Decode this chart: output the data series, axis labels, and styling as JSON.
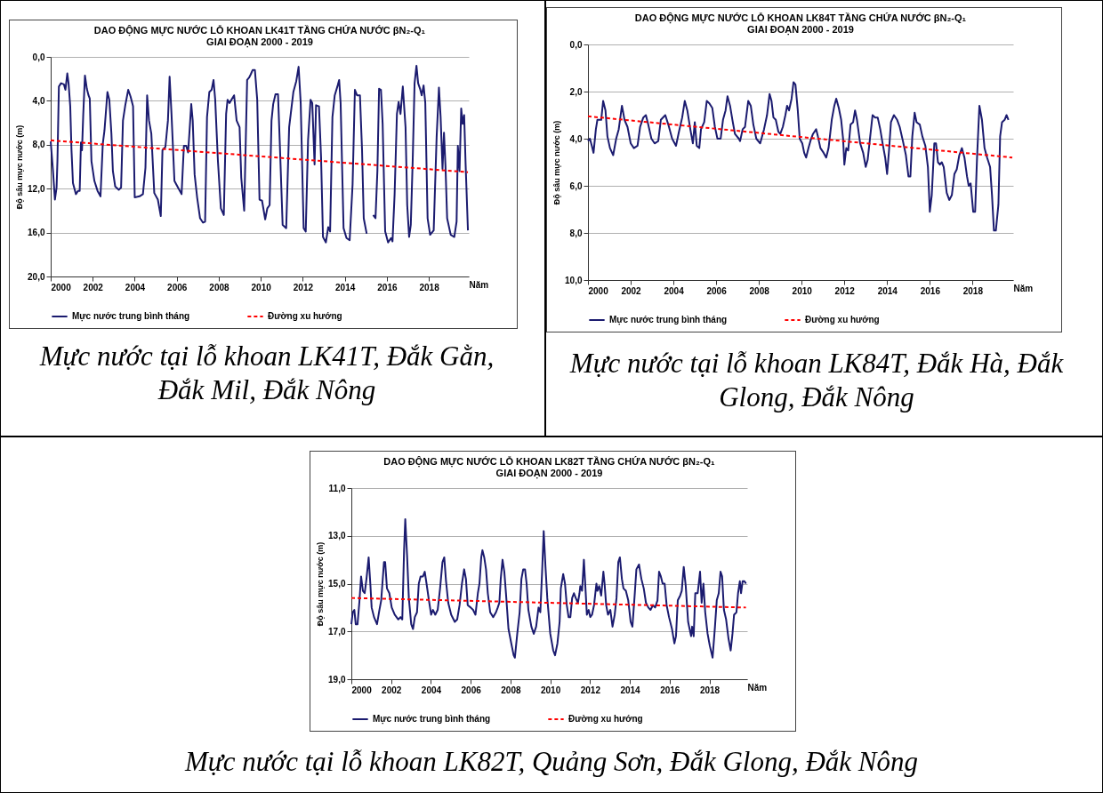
{
  "chart_data": [
    {
      "type": "line",
      "title": "DAO ĐỘNG MỰC NƯỚC LỖ KHOAN LK41T TẦNG CHỨA NƯỚC βN₂-Q₁",
      "subtitle": "GIAI ĐOẠN 2000 - 2019",
      "xlabel": "Năm",
      "ylabel": "Độ sâu mực nước (m)",
      "annotations": [
        "Mực nước tại lỗ khoan LK41T, Đắk Gằn, Đắk Mil, Đắk Nông"
      ],
      "xlim": [
        2000,
        2019.9
      ],
      "xticks": [
        2000,
        2002,
        2004,
        2006,
        2008,
        2010,
        2012,
        2014,
        2016,
        2018
      ],
      "ylim": [
        20,
        0
      ],
      "yticks": [
        {
          "value": 0,
          "label": "0,0"
        },
        {
          "value": 4,
          "label": "4,0"
        },
        {
          "value": 8,
          "label": "8,0"
        },
        {
          "value": 12,
          "label": "12,0"
        },
        {
          "value": 16,
          "label": "16,0"
        },
        {
          "value": 20,
          "label": "20,0"
        }
      ],
      "grid": "y",
      "legend": "bottom",
      "marker": "none",
      "line_style": "solid",
      "series": [
        {
          "name": "Mực nước trung bình tháng",
          "color": "#1b1b6f",
          "x": [
            2000,
            2000.11,
            2000.2,
            2000.28,
            2000.32,
            2000.39,
            2000.49,
            2000.63,
            2000.7,
            2000.79,
            2000.85,
            2000.93,
            2000.99,
            2001.06,
            2001.2,
            2001.3,
            2001.38,
            2001.44,
            2001.49,
            2001.55,
            2001.63,
            2001.72,
            2001.8,
            2001.86,
            2001.94,
            2002.08,
            2002.23,
            2002.37,
            2002.48,
            2002.56,
            2002.7,
            2002.79,
            2002.89,
            2002.96,
            2003.07,
            2003.24,
            2003.35,
            2003.44,
            2003.55,
            2003.69,
            2003.8,
            2003.92,
            2004.0,
            2004.23,
            2004.39,
            2004.51,
            2004.59,
            2004.68,
            2004.79,
            2004.93,
            2005.1,
            2005.24,
            2005.32,
            2005.46,
            2005.58,
            2005.66,
            2005.75,
            2005.89,
            2006.06,
            2006.23,
            2006.34,
            2006.45,
            2006.54,
            2006.59,
            2006.69,
            2006.76,
            2006.85,
            2006.97,
            2007.11,
            2007.25,
            2007.35,
            2007.44,
            2007.55,
            2007.66,
            2007.75,
            2007.83,
            2007.96,
            2008.1,
            2008.24,
            2008.35,
            2008.42,
            2008.51,
            2008.73,
            2008.85,
            2008.99,
            2009.07,
            2009.21,
            2009.35,
            2009.44,
            2009.52,
            2009.61,
            2009.72,
            2009.83,
            2009.94,
            2010.06,
            2010.21,
            2010.31,
            2010.42,
            2010.51,
            2010.59,
            2010.7,
            2010.82,
            2010.9,
            2011.04,
            2011.21,
            2011.35,
            2011.55,
            2011.69,
            2011.8,
            2011.9,
            2012.04,
            2012.14,
            2012.25,
            2012.37,
            2012.45,
            2012.56,
            2012.63,
            2012.77,
            2012.87,
            2012.96,
            2013.1,
            2013.21,
            2013.3,
            2013.41,
            2013.52,
            2013.66,
            2013.73,
            2013.8,
            2013.94,
            2014.08,
            2014.23,
            2014.37,
            2014.48,
            2014.58,
            2014.72,
            2014.82,
            2014.9,
            2015.04,
            2015.2,
            2015.35,
            2015.46,
            2015.55,
            2015.63,
            2015.72,
            2015.8,
            2015.92,
            2016.06,
            2016.2,
            2016.27,
            2016.37,
            2016.48,
            2016.56,
            2016.65,
            2016.76,
            2016.89,
            2016.97,
            2017.06,
            2017.14,
            2017.23,
            2017.32,
            2017.41,
            2017.49,
            2017.58,
            2017.66,
            2017.75,
            2017.83,
            2017.94,
            2018.06,
            2018.23,
            2018.37,
            2018.48,
            2018.56,
            2018.65,
            2018.72,
            2018.79,
            2018.87,
            2019.04,
            2019.21,
            2019.32,
            2019.38,
            2019.46,
            2019.54,
            2019.61,
            2019.68,
            2019.75,
            2019.86
          ],
          "values": [
            7.7,
            10.4,
            13.0,
            11.9,
            9.5,
            2.7,
            2.4,
            2.5,
            3.0,
            1.5,
            2.4,
            4.5,
            8.5,
            11.5,
            12.5,
            12.2,
            12.2,
            7.8,
            8.5,
            5.2,
            1.7,
            2.9,
            3.5,
            3.8,
            9.5,
            11.3,
            12.2,
            12.7,
            7.9,
            6.7,
            3.2,
            3.9,
            7.0,
            10.4,
            11.8,
            12.1,
            11.9,
            5.8,
            4.4,
            3.0,
            3.6,
            4.5,
            12.8,
            12.7,
            12.5,
            10.1,
            3.5,
            5.8,
            7.0,
            12.4,
            13.0,
            14.5,
            8.5,
            8.2,
            5.8,
            1.8,
            5.2,
            11.3,
            11.9,
            12.5,
            8.1,
            8.1,
            8.7,
            7.3,
            4.3,
            5.8,
            10.7,
            12.8,
            14.7,
            15.1,
            15.0,
            5.5,
            3.2,
            3.0,
            2.1,
            3.9,
            9.5,
            13.8,
            14.4,
            5.2,
            3.9,
            4.2,
            3.5,
            5.8,
            6.4,
            11.0,
            14.0,
            2.1,
            1.9,
            1.6,
            1.2,
            1.2,
            3.9,
            13.0,
            13.1,
            14.8,
            13.8,
            13.5,
            5.8,
            4.3,
            3.4,
            3.4,
            7.6,
            15.3,
            15.6,
            6.4,
            3.2,
            2.2,
            0.9,
            4.2,
            15.6,
            15.9,
            7.6,
            3.9,
            4.2,
            9.8,
            4.4,
            4.5,
            9.2,
            16.4,
            16.9,
            15.5,
            15.9,
            5.5,
            3.5,
            2.6,
            2.1,
            4.2,
            15.6,
            16.5,
            16.7,
            11.6,
            3.0,
            3.5,
            3.5,
            8.5,
            14.7,
            16.1,
            null,
            14.4,
            14.7,
            10.4,
            2.9,
            3.0,
            6.1,
            15.9,
            16.9,
            16.5,
            16.8,
            12.5,
            5.2,
            4.1,
            5.2,
            2.7,
            6.4,
            13.5,
            16.4,
            15.3,
            9.5,
            2.4,
            0.8,
            2.4,
            2.9,
            3.5,
            2.6,
            4.2,
            14.7,
            16.2,
            15.8,
            7.3,
            2.8,
            5.5,
            10.2,
            6.9,
            9.9,
            14.7,
            16.2,
            16.4,
            15.0,
            8.1,
            10.4,
            4.7,
            6.1,
            5.3,
            9.8,
            15.8
          ]
        },
        {
          "name": "Đường xu hướng",
          "color": "#ff0000",
          "line_style": "dashed",
          "x": [
            2000,
            2019.86
          ],
          "values": [
            7.6,
            10.5
          ]
        }
      ]
    },
    {
      "type": "line",
      "title": "DAO ĐỘNG MỰC NƯỚC LỖ KHOAN LK84T TẦNG CHỨA NƯỚC βN₂-Q₁",
      "subtitle": "GIAI ĐOẠN 2000 - 2019",
      "xlabel": "Năm",
      "ylabel": "Độ sâu mực nước (m)",
      "annotations": [
        "Mực nước tại lỗ khoan LK84T, Đắk Hà, Đắk Glong, Đắk Nông"
      ],
      "xlim": [
        2000,
        2019.9
      ],
      "xticks": [
        2000,
        2002,
        2004,
        2006,
        2008,
        2010,
        2012,
        2014,
        2016,
        2018
      ],
      "ylim": [
        10,
        0
      ],
      "yticks": [
        {
          "value": 0,
          "label": "0,0"
        },
        {
          "value": 2,
          "label": "2,0"
        },
        {
          "value": 4,
          "label": "4,0"
        },
        {
          "value": 6,
          "label": "6,0"
        },
        {
          "value": 8,
          "label": "8,0"
        },
        {
          "value": 10,
          "label": "10,0"
        }
      ],
      "grid": "y",
      "legend": "bottom",
      "marker": "none",
      "line_style": "solid",
      "series": [
        {
          "name": "Mực nước trung bình tháng",
          "color": "#1b1b6f",
          "x": [
            2000.0,
            2000.09,
            2000.18,
            2000.26,
            2000.37,
            2000.44,
            2000.51,
            2000.62,
            2000.71,
            2000.82,
            2000.91,
            2001.03,
            2001.18,
            2001.32,
            2001.44,
            2001.59,
            2001.71,
            2001.85,
            2002.0,
            2002.15,
            2002.32,
            2002.44,
            2002.59,
            2002.71,
            2002.82,
            2002.97,
            2003.12,
            2003.29,
            2003.41,
            2003.62,
            2003.76,
            2003.94,
            2004.12,
            2004.26,
            2004.41,
            2004.53,
            2004.65,
            2004.79,
            2004.91,
            2005.0,
            2005.09,
            2005.21,
            2005.29,
            2005.44,
            2005.56,
            2005.68,
            2005.82,
            2005.94,
            2006.06,
            2006.21,
            2006.32,
            2006.44,
            2006.53,
            2006.65,
            2006.76,
            2006.88,
            2007.06,
            2007.12,
            2007.24,
            2007.35,
            2007.5,
            2007.62,
            2007.74,
            2007.88,
            2008.06,
            2008.24,
            2008.38,
            2008.5,
            2008.59,
            2008.68,
            2008.79,
            2008.91,
            2009.0,
            2009.12,
            2009.24,
            2009.32,
            2009.41,
            2009.53,
            2009.62,
            2009.71,
            2009.82,
            2009.91,
            2010.03,
            2010.12,
            2010.21,
            2010.32,
            2010.41,
            2010.53,
            2010.68,
            2010.76,
            2010.88,
            2011.03,
            2011.15,
            2011.26,
            2011.41,
            2011.53,
            2011.62,
            2011.74,
            2011.85,
            2011.94,
            2012.0,
            2012.09,
            2012.18,
            2012.29,
            2012.41,
            2012.5,
            2012.59,
            2012.74,
            2012.88,
            2013.0,
            2013.09,
            2013.21,
            2013.32,
            2013.44,
            2013.56,
            2013.68,
            2013.79,
            2013.91,
            2014.0,
            2014.09,
            2014.18,
            2014.32,
            2014.47,
            2014.59,
            2014.74,
            2014.88,
            2015.0,
            2015.09,
            2015.18,
            2015.29,
            2015.38,
            2015.53,
            2015.65,
            2015.79,
            2015.91,
            2016.0,
            2016.09,
            2016.21,
            2016.29,
            2016.38,
            2016.47,
            2016.56,
            2016.65,
            2016.79,
            2016.91,
            2017.03,
            2017.15,
            2017.26,
            2017.38,
            2017.5,
            2017.62,
            2017.74,
            2017.82,
            2017.91,
            2018.03,
            2018.12,
            2018.21,
            2018.32,
            2018.44,
            2018.56,
            2018.68,
            2018.82,
            2018.91,
            2019.0,
            2019.09,
            2019.21,
            2019.29,
            2019.38,
            2019.5,
            2019.59,
            2019.68
          ],
          "values": [
            4.1,
            4.0,
            4.3,
            4.6,
            3.6,
            3.2,
            3.2,
            3.2,
            2.4,
            2.8,
            3.9,
            4.4,
            4.7,
            4.0,
            3.6,
            2.6,
            3.2,
            3.5,
            4.2,
            4.4,
            4.3,
            3.5,
            3.1,
            3.0,
            3.4,
            4.0,
            4.2,
            4.1,
            3.2,
            3.0,
            3.4,
            4.0,
            4.3,
            3.7,
            3.1,
            2.4,
            2.8,
            3.6,
            4.2,
            3.3,
            4.3,
            4.4,
            3.6,
            3.3,
            2.4,
            2.5,
            2.7,
            3.5,
            4.0,
            4.0,
            3.2,
            2.8,
            2.2,
            2.6,
            3.2,
            3.8,
            4.0,
            4.1,
            3.6,
            3.5,
            2.4,
            2.6,
            3.4,
            4.0,
            4.2,
            3.6,
            3.0,
            2.1,
            2.4,
            3.1,
            3.2,
            3.7,
            3.8,
            3.5,
            3.0,
            2.6,
            2.8,
            2.3,
            1.6,
            1.7,
            2.8,
            4.0,
            4.2,
            4.6,
            4.8,
            4.4,
            4.1,
            3.8,
            3.6,
            3.9,
            4.4,
            4.6,
            4.8,
            4.4,
            3.2,
            2.6,
            2.3,
            2.7,
            3.2,
            4.0,
            5.1,
            4.4,
            4.5,
            3.4,
            3.3,
            2.8,
            3.2,
            4.2,
            4.6,
            5.2,
            4.9,
            3.9,
            3.0,
            3.1,
            3.1,
            3.6,
            4.2,
            4.8,
            5.5,
            4.5,
            3.3,
            3.0,
            3.2,
            3.5,
            4.1,
            4.7,
            5.6,
            5.6,
            3.9,
            2.9,
            3.3,
            3.4,
            3.9,
            4.3,
            5.2,
            7.1,
            6.4,
            4.2,
            4.2,
            5.0,
            5.1,
            5.0,
            5.2,
            6.3,
            6.6,
            6.4,
            5.5,
            5.3,
            4.7,
            4.4,
            4.8,
            5.6,
            6.0,
            5.9,
            7.1,
            7.1,
            4.8,
            2.6,
            3.2,
            4.4,
            4.8,
            5.2,
            6.4,
            7.9,
            7.9,
            6.8,
            3.9,
            3.3,
            3.2,
            3.0,
            3.2
          ]
        },
        {
          "name": "Đường xu hướng",
          "color": "#ff0000",
          "line_style": "dashed",
          "x": [
            2000,
            2019.86
          ],
          "values": [
            3.05,
            4.8
          ]
        }
      ]
    },
    {
      "type": "line",
      "title": "DAO ĐỘNG MỰC NƯỚC LỖ KHOAN LK82T TẦNG CHỨA NƯỚC βN₂-Q₁",
      "subtitle": "GIAI ĐOẠN 2000 - 2019",
      "xlabel": "Năm",
      "ylabel": "Độ sâu mực nước (m)",
      "annotations": [
        "Mực nước tại lỗ khoan LK82T, Quảng Sơn, Đắk Glong, Đắk Nông"
      ],
      "xlim": [
        2000,
        2019.9
      ],
      "xticks": [
        2000,
        2002,
        2004,
        2006,
        2008,
        2010,
        2012,
        2014,
        2016,
        2018
      ],
      "ylim": [
        19,
        11
      ],
      "yticks": [
        {
          "value": 11,
          "label": "11,0"
        },
        {
          "value": 13,
          "label": "13,0"
        },
        {
          "value": 15,
          "label": "15,0"
        },
        {
          "value": 17,
          "label": "17,0"
        },
        {
          "value": 19,
          "label": "19,0"
        }
      ],
      "grid": "y",
      "legend": "bottom",
      "marker": "none",
      "line_style": "solid",
      "series": [
        {
          "name": "Mực nước trung bình tháng",
          "color": "#1b1b6f",
          "x": [
            2000.0,
            2000.07,
            2000.15,
            2000.22,
            2000.31,
            2000.4,
            2000.49,
            2000.58,
            2000.67,
            2000.76,
            2000.87,
            2000.96,
            2001.02,
            2001.14,
            2001.29,
            2001.41,
            2001.5,
            2001.64,
            2001.7,
            2001.79,
            2001.91,
            2002.03,
            2002.18,
            2002.36,
            2002.47,
            2002.56,
            2002.65,
            2002.71,
            2002.8,
            2002.89,
            2003.01,
            2003.1,
            2003.19,
            2003.3,
            2003.39,
            2003.48,
            2003.6,
            2003.69,
            2003.78,
            2003.9,
            2004.01,
            2004.1,
            2004.22,
            2004.34,
            2004.46,
            2004.58,
            2004.67,
            2004.76,
            2004.87,
            2005.02,
            2005.2,
            2005.32,
            2005.44,
            2005.56,
            2005.67,
            2005.76,
            2005.85,
            2006.0,
            2006.12,
            2006.24,
            2006.36,
            2006.44,
            2006.53,
            2006.59,
            2006.68,
            2006.77,
            2006.86,
            2006.98,
            2007.13,
            2007.27,
            2007.36,
            2007.44,
            2007.51,
            2007.6,
            2007.69,
            2007.79,
            2007.9,
            2008.04,
            2008.16,
            2008.22,
            2008.34,
            2008.46,
            2008.55,
            2008.64,
            2008.73,
            2008.81,
            2008.9,
            2009.05,
            2009.17,
            2009.29,
            2009.41,
            2009.5,
            2009.59,
            2009.67,
            2009.76,
            2009.85,
            2010.0,
            2010.15,
            2010.24,
            2010.36,
            2010.47,
            2010.53,
            2010.65,
            2010.74,
            2010.83,
            2010.92,
            2011.01,
            2011.1,
            2011.19,
            2011.28,
            2011.39,
            2011.47,
            2011.51,
            2011.6,
            2011.69,
            2011.75,
            2011.84,
            2011.93,
            2012.01,
            2012.1,
            2012.2,
            2012.32,
            2012.37,
            2012.46,
            2012.56,
            2012.67,
            2012.73,
            2012.81,
            2012.9,
            2013.02,
            2013.13,
            2013.24,
            2013.33,
            2013.42,
            2013.5,
            2013.6,
            2013.68,
            2013.8,
            2013.92,
            2014.04,
            2014.13,
            2014.25,
            2014.33,
            2014.46,
            2014.58,
            2014.7,
            2014.81,
            2014.93,
            2015.04,
            2015.16,
            2015.27,
            2015.39,
            2015.47,
            2015.56,
            2015.65,
            2015.75,
            2015.85,
            2015.97,
            2016.12,
            2016.24,
            2016.32,
            2016.41,
            2016.53,
            2016.61,
            2016.71,
            2016.81,
            2016.93,
            2017.08,
            2017.13,
            2017.21,
            2017.29,
            2017.41,
            2017.53,
            2017.61,
            2017.7,
            2017.79,
            2017.91,
            2018.02,
            2018.16,
            2018.28,
            2018.37,
            2018.47,
            2018.56,
            2018.64,
            2018.73,
            2018.84,
            2018.96,
            2019.07,
            2019.16,
            2019.24,
            2019.36,
            2019.44,
            2019.53,
            2019.59,
            2019.67,
            2019.76,
            2019.84
          ],
          "values": [
            16.7,
            16.2,
            16.1,
            16.7,
            16.7,
            15.8,
            14.7,
            15.3,
            15.4,
            14.8,
            13.9,
            15.1,
            16.0,
            16.4,
            16.7,
            16.1,
            15.7,
            14.1,
            14.1,
            15.2,
            15.4,
            16.0,
            16.3,
            16.5,
            16.4,
            16.5,
            13.6,
            12.3,
            13.8,
            15.6,
            16.7,
            16.9,
            16.4,
            16.2,
            15.0,
            14.7,
            14.7,
            14.5,
            15.0,
            15.7,
            16.3,
            16.1,
            16.3,
            16.1,
            15.2,
            14.1,
            13.9,
            14.9,
            15.8,
            16.3,
            16.6,
            16.5,
            15.9,
            15.0,
            14.4,
            14.8,
            15.9,
            16.0,
            16.1,
            16.3,
            15.4,
            15.0,
            13.9,
            13.6,
            13.9,
            14.4,
            15.4,
            16.2,
            16.4,
            16.2,
            16.0,
            15.8,
            14.8,
            14.0,
            14.5,
            15.6,
            16.9,
            17.5,
            18.0,
            18.1,
            17.1,
            16.2,
            14.8,
            14.4,
            14.4,
            15.0,
            16.1,
            16.8,
            17.1,
            16.8,
            16.0,
            16.2,
            14.5,
            12.8,
            14.3,
            15.6,
            17.1,
            17.8,
            18.0,
            17.5,
            16.6,
            15.2,
            14.6,
            15.0,
            15.9,
            16.4,
            16.4,
            15.6,
            15.4,
            15.6,
            15.8,
            15.4,
            15.1,
            15.3,
            14.0,
            14.9,
            16.3,
            16.1,
            16.4,
            16.3,
            15.9,
            15.0,
            15.3,
            15.1,
            15.5,
            14.5,
            15.0,
            15.9,
            16.3,
            16.1,
            16.8,
            16.3,
            15.6,
            14.1,
            13.9,
            14.8,
            15.2,
            15.3,
            15.7,
            16.6,
            16.8,
            15.4,
            14.4,
            14.2,
            14.8,
            15.2,
            15.8,
            16.0,
            16.1,
            15.9,
            16.0,
            15.7,
            14.5,
            14.7,
            15.0,
            15.0,
            15.9,
            16.4,
            16.9,
            17.5,
            17.2,
            15.7,
            15.5,
            15.3,
            14.3,
            15.1,
            16.6,
            17.2,
            16.8,
            17.2,
            15.4,
            15.4,
            14.5,
            15.8,
            15.0,
            16.2,
            17.1,
            17.6,
            18.1,
            16.8,
            15.7,
            15.4,
            14.5,
            14.7,
            16.1,
            16.5,
            17.3,
            17.8,
            17.1,
            16.3,
            16.2,
            15.4,
            14.9,
            15.4,
            14.9,
            14.9,
            15.0
          ]
        },
        {
          "name": "Đường xu hướng",
          "color": "#ff0000",
          "line_style": "dashed",
          "x": [
            2000,
            2019.84
          ],
          "values": [
            15.6,
            16.0
          ]
        }
      ]
    }
  ]
}
